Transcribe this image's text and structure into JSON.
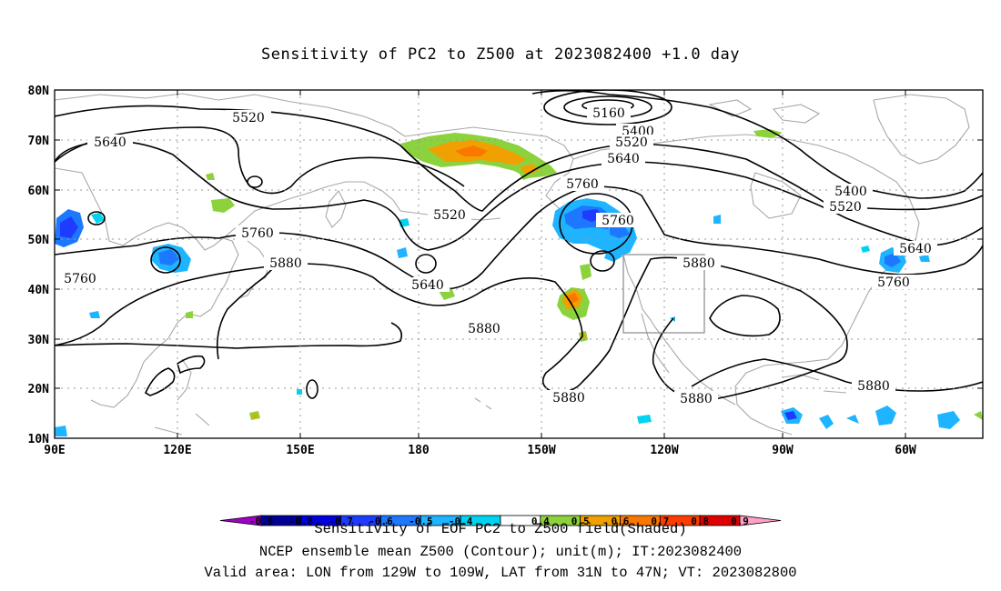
{
  "title": "Sensitivity of PC2 to Z500 at 2023082400 +1.0 day",
  "axes": {
    "lat_labels": [
      "80N",
      "70N",
      "60N",
      "50N",
      "40N",
      "30N",
      "20N",
      "10N"
    ],
    "lon_labels": [
      "90E",
      "120E",
      "150E",
      "180",
      "150W",
      "120W",
      "90W",
      "60W"
    ]
  },
  "contour_labels": [
    "5520",
    "5640",
    "5160",
    "5400",
    "5520",
    "5640",
    "5760",
    "5400",
    "5520",
    "5760",
    "5880",
    "5520",
    "5760",
    "5640",
    "5880",
    "5760",
    "5880",
    "5880",
    "5880",
    "5640",
    "5760",
    "5880"
  ],
  "valid_area": {
    "lon": [
      "129W",
      "109W"
    ],
    "lat": [
      "31N",
      "47N"
    ]
  },
  "colorbar": {
    "labels": [
      "-0.9",
      "-0.8",
      "-0.7",
      "-0.6",
      "-0.5",
      "-0.4",
      "0.4",
      "0.5",
      "0.6",
      "0.7",
      "0.8",
      "0.9"
    ],
    "colors": [
      "#a000c8",
      "#000096",
      "#0000dc",
      "#1e3cff",
      "#1e78ff",
      "#1eb4ff",
      "#00d2f0",
      "#ffffff",
      "#8cd23c",
      "#f0a000",
      "#fa7800",
      "#ff3c00",
      "#e10000",
      "#ffa0c8"
    ]
  },
  "notes": {
    "line1": "Sensitivity of EOF PC2 to Z500 field(Shaded)",
    "line2": "NCEP ensemble mean Z500 (Contour); unit(m); IT:2023082400",
    "line3": "Valid area: LON from 129W to 109W, LAT from 31N to 47N; VT: 2023082800"
  }
}
